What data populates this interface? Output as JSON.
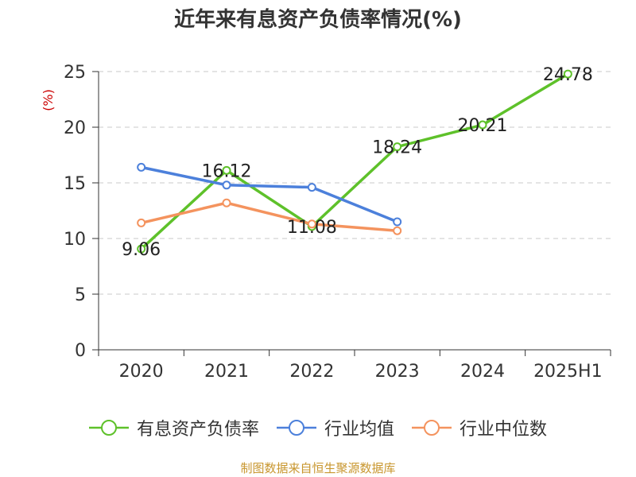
{
  "title": "近年来有息资产负债率情况(%)",
  "source": "制图数据来自恒生聚源数据库",
  "chart_data": {
    "type": "line",
    "title": "近年来有息资产负债率情况(%)",
    "ylabel": "(%)",
    "xlabel": "",
    "categories": [
      "2020",
      "2021",
      "2022",
      "2023",
      "2024",
      "2025H1"
    ],
    "ylim": [
      0,
      25
    ],
    "yticks": [
      "0",
      "5",
      "10",
      "15",
      "20",
      "25"
    ],
    "grid": true,
    "legend_position": "bottom",
    "series": [
      {
        "name": "有息资产负债率",
        "color": "#5ec12a",
        "values": [
          9.06,
          16.12,
          11.08,
          18.24,
          20.21,
          24.78
        ],
        "labels": [
          "9.06",
          "16.12",
          "11.08",
          "18.24",
          "20.21",
          "24.78"
        ]
      },
      {
        "name": "行业均值",
        "color": "#4c80db",
        "values": [
          16.4,
          14.8,
          14.6,
          11.5,
          null,
          null
        ]
      },
      {
        "name": "行业中位数",
        "color": "#f4935e",
        "values": [
          11.4,
          13.2,
          11.3,
          10.7,
          null,
          null
        ]
      }
    ]
  }
}
